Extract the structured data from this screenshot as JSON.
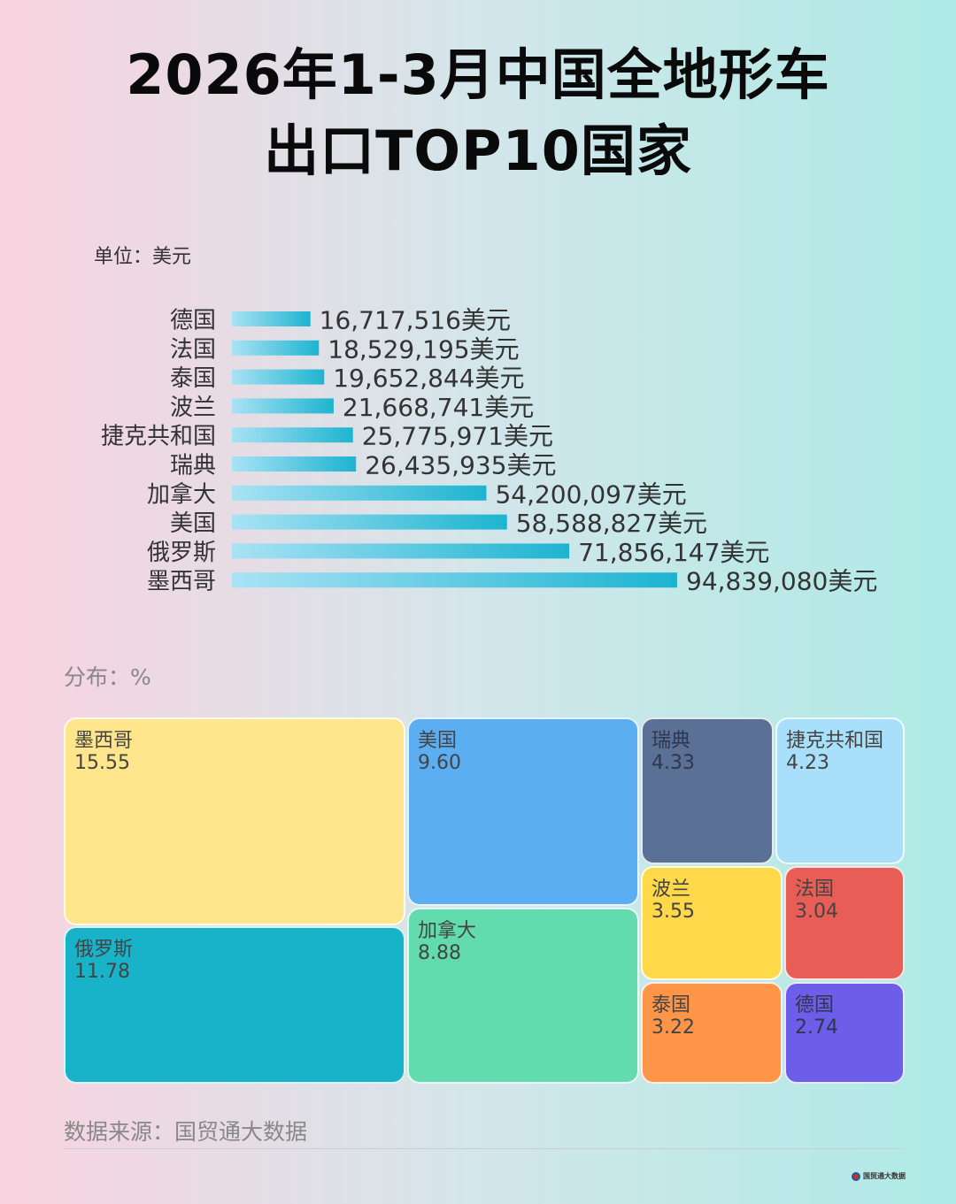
{
  "title": {
    "line1": "2026年1-3月中国全地形车",
    "line2": "出口TOP10国家"
  },
  "unit_label": "单位：美元",
  "distribution_label": "分布：%",
  "source": "数据来源：国贸通大数据",
  "logo_text": "国贸通大数据",
  "colors": {
    "bar_start": "#a9e2f5",
    "bar_end": "#1db4d0",
    "mexico": "#ffe68c",
    "usa": "#5caef3",
    "sweden": "#5a7095",
    "czech": "#a8e0fb",
    "russia": "#18b3c9",
    "canada": "#62dbae",
    "poland": "#ffd94a",
    "france": "#e85e57",
    "thailand": "#ff9549",
    "germany": "#6c5ee8"
  },
  "chart_data": [
    {
      "type": "bar",
      "orientation": "horizontal",
      "unit": "美元",
      "categories": [
        "德国",
        "法国",
        "泰国",
        "波兰",
        "捷克共和国",
        "瑞典",
        "加拿大",
        "美国",
        "俄罗斯",
        "墨西哥"
      ],
      "values": [
        16717516,
        18529195,
        19652844,
        21668741,
        25775971,
        26435935,
        54200097,
        58588827,
        71856147,
        94839080
      ],
      "labels": [
        "16,717,516美元",
        "18,529,195美元",
        "19,652,844美元",
        "21,668,741美元",
        "25,775,971美元",
        "26,435,935美元",
        "54,200,097美元",
        "58,588,827美元",
        "71,856,147美元",
        "94,839,080美元"
      ]
    },
    {
      "type": "treemap",
      "unit": "%",
      "categories": [
        "墨西哥",
        "俄罗斯",
        "美国",
        "加拿大",
        "瑞典",
        "捷克共和国",
        "波兰",
        "法国",
        "泰国",
        "德国"
      ],
      "values": [
        15.55,
        11.78,
        9.6,
        8.88,
        4.33,
        4.23,
        3.55,
        3.04,
        3.22,
        2.74
      ],
      "value_labels": [
        "15.55",
        "11.78",
        "9.60",
        "8.88",
        "4.33",
        "4.23",
        "3.55",
        "3.04",
        "3.22",
        "2.74"
      ]
    }
  ]
}
